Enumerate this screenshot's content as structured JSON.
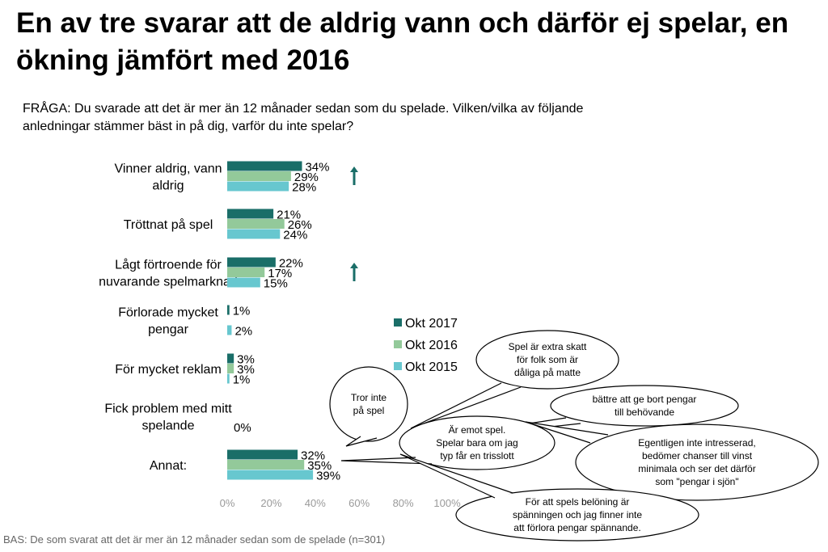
{
  "title": "En av tre svarar att  de aldrig vann och därför ej spelar, en ökning jämfört med 2016",
  "question": "FRÅGA: Du svarade att det är mer än 12 månader sedan som du spelade. Vilken/vilka av följande anledningar stämmer bäst in på dig, varför du inte spelar?",
  "base_note": "BAS: De som svarat att det är mer än 12 månader sedan som de spelade (n=301)",
  "colors": {
    "Okt 2017": "#1a6e68",
    "Okt 2016": "#93c99a",
    "Okt 2015": "#67c7cf",
    "arrow": "#1a6e68"
  },
  "chart_data": {
    "type": "bar",
    "orientation": "horizontal",
    "categories": [
      [
        "Vinner aldrig, vann",
        "aldrig"
      ],
      [
        "Tröttnat på spel"
      ],
      [
        "Lågt förtroende för",
        "nuvarande spelmarknad"
      ],
      [
        "Förlorade mycket",
        "pengar"
      ],
      [
        "För mycket reklam"
      ],
      [
        "Fick problem med mitt",
        "spelande"
      ],
      [
        "Annat:"
      ]
    ],
    "series": [
      {
        "name": "Okt 2017",
        "values": [
          34,
          21,
          22,
          1,
          3,
          null,
          32
        ]
      },
      {
        "name": "Okt 2016",
        "values": [
          29,
          26,
          17,
          null,
          3,
          null,
          35
        ]
      },
      {
        "name": "Okt 2015",
        "values": [
          28,
          24,
          15,
          2,
          1,
          null,
          39
        ]
      }
    ],
    "combined_labels": {
      "5": "0%"
    },
    "significant_increase": [
      0,
      2
    ],
    "xlim": [
      0,
      100
    ],
    "xticks": [
      "0%",
      "20%",
      "40%",
      "60%",
      "80%",
      "100%"
    ],
    "legend_position": "right-center"
  },
  "comments": [
    [
      "Tror inte",
      "på spel"
    ],
    [
      "Spel är extra skatt",
      "för folk som är",
      "dåliga på matte"
    ],
    [
      "bättre att ge bort pengar",
      "till behövande"
    ],
    [
      "Är emot spel.",
      "Spelar bara om jag",
      "typ får en trisslott"
    ],
    [
      "Egentligen inte intresserad,",
      "bedömer chanser till vinst",
      "minimala och ser det därför",
      "som \"pengar i sjön\""
    ],
    [
      "För att spels belöning är",
      "spänningen och jag finner inte",
      "att förlora pengar spännande."
    ]
  ]
}
